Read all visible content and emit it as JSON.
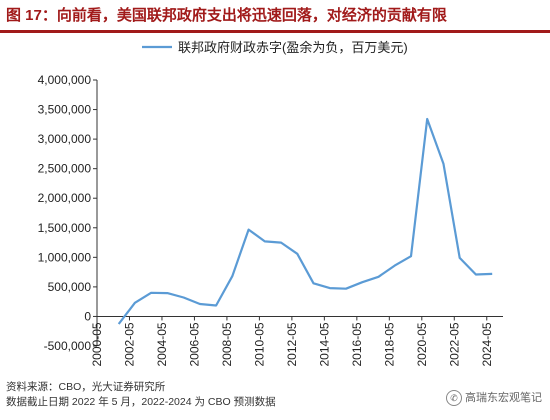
{
  "header": {
    "title": "图 17：向前看，美国联邦政府支出将迅速回落，对经济的贡献有限"
  },
  "footer": {
    "source": "资料来源：CBO，光大证券研究所",
    "note": "数据截止日期 2022 年 5 月，2022-2024 为 CBO 预测数据"
  },
  "watermark": {
    "text": "高瑞东宏观笔记",
    "icon": "wechat-icon"
  },
  "colors": {
    "title": "#a11a1a",
    "series": "#5b9bd5",
    "axis": "#333333"
  },
  "chart_data": {
    "type": "line",
    "title": "",
    "xlabel": "",
    "ylabel": "",
    "legend_position": "top-center",
    "grid": false,
    "ylim": [
      -500000,
      4000000
    ],
    "yticks": [
      -500000,
      0,
      500000,
      1000000,
      1500000,
      2000000,
      2500000,
      3000000,
      3500000,
      4000000
    ],
    "ytick_labels": [
      "-500,000",
      "0",
      "500,000",
      "1,000,000",
      "1,500,000",
      "2,000,000",
      "2,500,000",
      "3,000,000",
      "3,500,000",
      "4,000,000"
    ],
    "xlim": [
      "2000-05",
      "2025-05"
    ],
    "xticks": [
      "2000-05",
      "2002-05",
      "2004-05",
      "2006-05",
      "2008-05",
      "2010-05",
      "2012-05",
      "2014-05",
      "2016-05",
      "2018-05",
      "2020-05",
      "2022-05",
      "2024-05"
    ],
    "series": [
      {
        "name": "联邦政府财政赤字(盈余为负，百万美元)",
        "x": [
          "2001-09",
          "2002-09",
          "2003-09",
          "2004-09",
          "2005-09",
          "2006-09",
          "2007-09",
          "2008-09",
          "2009-09",
          "2010-09",
          "2011-09",
          "2012-09",
          "2013-09",
          "2014-09",
          "2015-09",
          "2016-09",
          "2017-09",
          "2018-09",
          "2019-09",
          "2020-09",
          "2021-09",
          "2022-09",
          "2023-09",
          "2024-09"
        ],
        "values": [
          -128000,
          230000,
          400000,
          395000,
          320000,
          210000,
          185000,
          680000,
          1470000,
          1270000,
          1250000,
          1060000,
          560000,
          480000,
          470000,
          580000,
          670000,
          860000,
          1020000,
          3340000,
          2580000,
          990000,
          710000,
          720000
        ]
      }
    ]
  }
}
